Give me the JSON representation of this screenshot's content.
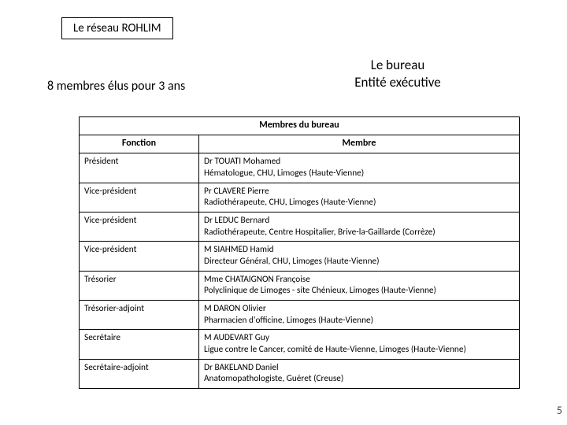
{
  "tag": "Le réseau ROHLIM",
  "subtitle": "8 membres élus pour 3 ans",
  "heading": {
    "line1": "Le bureau",
    "line2": "Entité exécutive"
  },
  "table": {
    "title": "Membres du bureau",
    "columns": [
      "Fonction",
      "Membre"
    ],
    "rows": [
      {
        "fn": "Président",
        "m1": "Dr TOUATI Mohamed",
        "m2": "Hématologue, CHU, Limoges (Haute-Vienne)"
      },
      {
        "fn": "Vice-président",
        "m1": "Pr CLAVERE Pierre",
        "m2": "Radiothérapeute, CHU, Limoges (Haute-Vienne)"
      },
      {
        "fn": "Vice-président",
        "m1": "Dr LEDUC Bernard",
        "m2": "Radiothérapeute, Centre Hospitalier, Brive-la-Gaillarde (Corrèze)"
      },
      {
        "fn": "Vice-président",
        "m1": "M SIAHMED Hamid",
        "m2": "Directeur Général, CHU, Limoges (Haute-Vienne)"
      },
      {
        "fn": "Trésorier",
        "m1": "Mme CHATAIGNON Françoise",
        "m2": "Polyclinique de Limoges - site Chénieux, Limoges (Haute-Vienne)"
      },
      {
        "fn": "Trésorier-adjoint",
        "m1": "M DARON Olivier",
        "m2": "Pharmacien d'officine, Limoges (Haute-Vienne)"
      },
      {
        "fn": "Secrétaire",
        "m1": "M AUDEVART Guy",
        "m2": "Ligue contre le Cancer, comité de Haute-Vienne, Limoges (Haute-Vienne)"
      },
      {
        "fn": "Secrétaire-adjoint",
        "m1": "Dr BAKELAND Daniel",
        "m2": "Anatomopathologiste, Guéret (Creuse)"
      }
    ]
  },
  "pageNumber": "5",
  "style": {
    "borderColor": "#000000",
    "background": "#ffffff",
    "fontSizes": {
      "tag": 15,
      "subtitle": 16,
      "heading": 17,
      "tableHeader": 12,
      "tableCell": 11.3
    },
    "tableWidth": 560,
    "col1Width": 152
  }
}
